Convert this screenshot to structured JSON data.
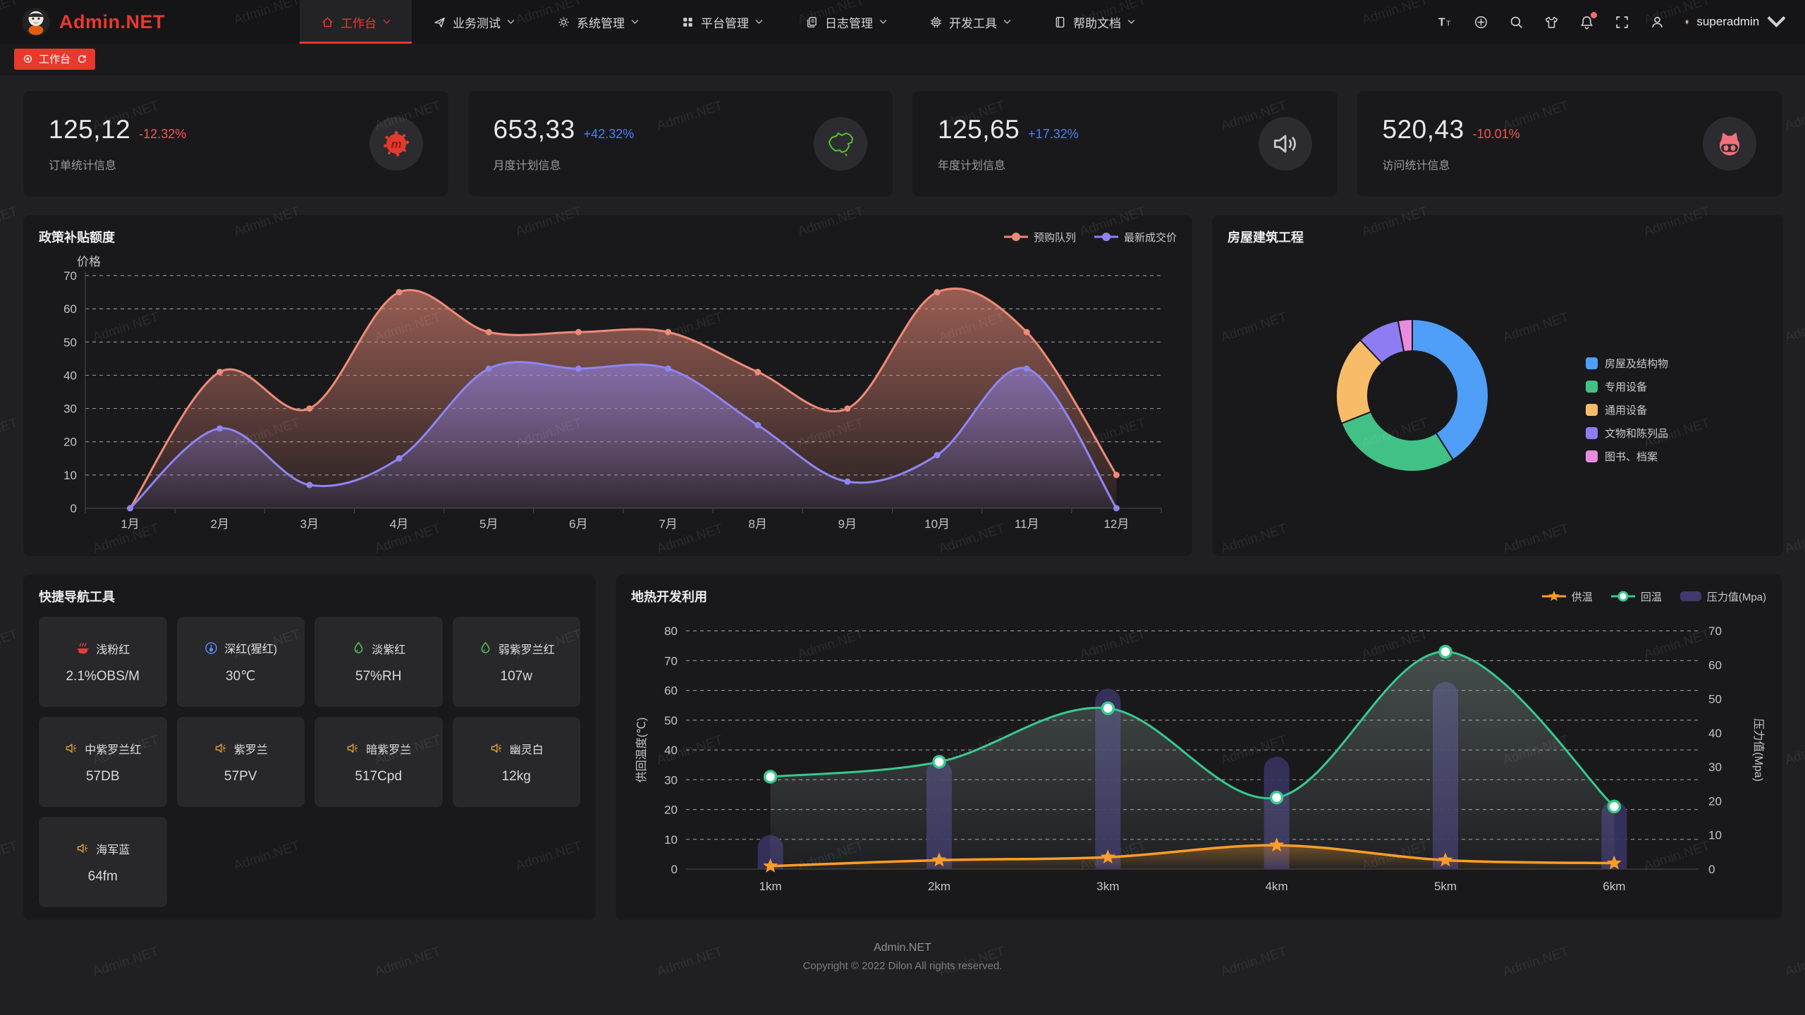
{
  "brand": {
    "logo_text": "Admin.NET"
  },
  "navbar": {
    "menus": [
      {
        "label": "工作台",
        "icon": "home-icon",
        "active": true
      },
      {
        "label": "业务测试",
        "icon": "send-icon",
        "active": false
      },
      {
        "label": "系统管理",
        "icon": "gear-icon",
        "active": false
      },
      {
        "label": "平台管理",
        "icon": "grid-icon",
        "active": false
      },
      {
        "label": "日志管理",
        "icon": "log-icon",
        "active": false
      },
      {
        "label": "开发工具",
        "icon": "cpu-icon",
        "active": false
      },
      {
        "label": "帮助文档",
        "icon": "book-icon",
        "active": false
      }
    ],
    "actions": [
      {
        "icon": "font-size-icon"
      },
      {
        "icon": "language-icon"
      },
      {
        "icon": "search-icon"
      },
      {
        "icon": "theme-icon"
      },
      {
        "icon": "bell-icon",
        "badge": true
      },
      {
        "icon": "fullscreen-icon"
      },
      {
        "icon": "user-icon"
      }
    ],
    "user": "superadmin"
  },
  "tabbar": {
    "active_tab": "工作台"
  },
  "stat_cards": [
    {
      "value": "125,12",
      "delta": "-12.32%",
      "delta_color": "#fd5151",
      "label": "订单统计信息",
      "icon": "meetup-icon"
    },
    {
      "value": "653,33",
      "delta": "+42.32%",
      "delta_color": "#4c7df8",
      "label": "月度计划信息",
      "icon": "china-map-icon"
    },
    {
      "value": "125,65",
      "delta": "+17.32%",
      "delta_color": "#4c7df8",
      "label": "年度计划信息",
      "icon": "audio-icon"
    },
    {
      "value": "520,43",
      "delta": "-10.01%",
      "delta_color": "#fd5151",
      "label": "访问统计信息",
      "icon": "cat-icon"
    }
  ],
  "chart_data": [
    {
      "id": "policy",
      "type": "area",
      "title": "政策补贴额度",
      "ylabel": "价格",
      "ylim": [
        0,
        70
      ],
      "grid": true,
      "legend_position": "top-right",
      "categories": [
        "1月",
        "2月",
        "3月",
        "4月",
        "5月",
        "6月",
        "7月",
        "8月",
        "9月",
        "10月",
        "11月",
        "12月"
      ],
      "series": [
        {
          "name": "预购队列",
          "color": "#ed8b78",
          "values": [
            0,
            41,
            30,
            65,
            53,
            53,
            53,
            41,
            30,
            65,
            53,
            10
          ]
        },
        {
          "name": "最新成交价",
          "color": "#8f85f0",
          "values": [
            0,
            24,
            7,
            15,
            42,
            42,
            42,
            25,
            8,
            16,
            42,
            0
          ]
        }
      ]
    },
    {
      "id": "building",
      "type": "pie",
      "title": "房屋建筑工程",
      "legend_position": "right",
      "labels": [
        "房屋及结构物",
        "专用设备",
        "通用设备",
        "文物和陈列品",
        "图书、档案"
      ],
      "values": [
        41,
        28,
        19,
        9,
        3
      ],
      "colors": [
        "#4f9ef8",
        "#41c185",
        "#f8bc69",
        "#8e7cf3",
        "#ea8cdd"
      ]
    },
    {
      "id": "geothermal",
      "type": "mixed",
      "title": "地热开发利用",
      "legend_position": "top-right",
      "categories": [
        "1km",
        "2km",
        "3km",
        "4km",
        "5km",
        "6km"
      ],
      "left_axis": {
        "label": "供回温度(℃)",
        "min": 0,
        "max": 80
      },
      "right_axis": {
        "label": "压力值(Mpa)",
        "min": 0,
        "max": 70
      },
      "series": [
        {
          "name": "压力值(Mpa)",
          "type": "bar",
          "axis": "right",
          "marker": "bar",
          "color": "#37325e",
          "values": [
            10,
            32,
            53,
            33,
            55,
            20
          ]
        },
        {
          "name": "回温",
          "type": "line",
          "axis": "left",
          "marker": "circle",
          "color": "#38c98c",
          "values": [
            31,
            36,
            54,
            24,
            73,
            21
          ]
        },
        {
          "name": "供温",
          "type": "line",
          "axis": "left",
          "marker": "star",
          "color": "#ff9d26",
          "values": [
            1,
            3,
            4,
            8,
            3,
            2
          ]
        }
      ]
    }
  ],
  "quick_nav": {
    "title": "快捷导航工具",
    "items": [
      {
        "icon": "hotpot-icon",
        "icon_color": "#e23c3c",
        "name": "浅粉红",
        "value": "2.1%OBS/M"
      },
      {
        "icon": "thermometer-icon",
        "icon_color": "#5b8ff9",
        "name": "深红(猩红)",
        "value": "30℃"
      },
      {
        "icon": "drop-icon",
        "icon_color": "#55b95f",
        "name": "淡紫红",
        "value": "57%RH"
      },
      {
        "icon": "drop-icon",
        "icon_color": "#55b95f",
        "name": "弱紫罗兰红",
        "value": "107w"
      },
      {
        "icon": "speaker-icon",
        "icon_color": "#e6a23c",
        "name": "中紫罗兰红",
        "value": "57DB"
      },
      {
        "icon": "speaker-icon",
        "icon_color": "#e6a23c",
        "name": "紫罗兰",
        "value": "57PV"
      },
      {
        "icon": "speaker-icon",
        "icon_color": "#e6a23c",
        "name": "暗紫罗兰",
        "value": "517Cpd"
      },
      {
        "icon": "speaker-icon",
        "icon_color": "#e6a23c",
        "name": "幽灵白",
        "value": "12kg"
      },
      {
        "icon": "speaker-icon",
        "icon_color": "#e6a23c",
        "name": "海军蓝",
        "value": "64fm"
      }
    ]
  },
  "footer": {
    "line1": "Admin.NET",
    "line2": "Copyright © 2022 Dilon All rights reserved."
  },
  "watermark": "Admin.NET"
}
